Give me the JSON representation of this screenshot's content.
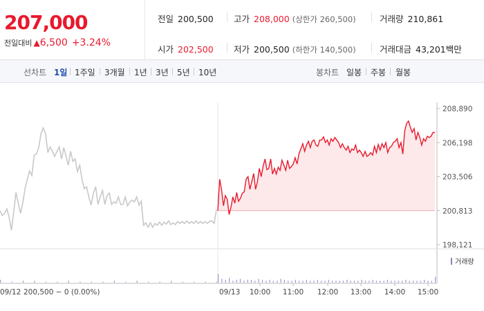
{
  "quote": {
    "current_price": "207,000",
    "change_label": "전일대비",
    "change_icon": "triangle-up-icon",
    "change_value": "6,500",
    "change_percent": "+3.24%",
    "up_color": "#e8192c"
  },
  "stats": {
    "prev_close": {
      "label": "전일",
      "value": "200,500"
    },
    "high": {
      "label": "고가",
      "value": "208,000",
      "sub": "(상한가 260,500)"
    },
    "volume": {
      "label": "거래량",
      "value": "210,861"
    },
    "open": {
      "label": "시가",
      "value": "202,500"
    },
    "low": {
      "label": "저가",
      "value": "200,500",
      "sub": "(하한가 140,500)"
    },
    "turnover": {
      "label": "거래대금",
      "value": "43,201백만"
    }
  },
  "toolbar": {
    "line_chart_label": "선차트",
    "line_periods": [
      "1일",
      "1주일",
      "3개월",
      "1년",
      "3년",
      "5년",
      "10년"
    ],
    "active_period": "1일",
    "candle_chart_label": "봉차트",
    "candle_periods": [
      "일봉",
      "주봉",
      "월봉"
    ]
  },
  "chart_data": {
    "type": "line",
    "prev_day_label": "09/12",
    "prev_day_info": "200,500 − 0 (0.00%)",
    "today_label": "09/13",
    "x_ticks": [
      "10:00",
      "11:00",
      "12:00",
      "13:00",
      "14:00",
      "15:00"
    ],
    "y_ticks": [
      "208,890",
      "206,198",
      "203,506",
      "200,813",
      "198,121"
    ],
    "ylim": [
      198121,
      208890
    ],
    "baseline": 200500,
    "volume_legend": "거래량",
    "colors": {
      "prev": "#c8c8c8",
      "today": "#e8192c",
      "fill": "#fde9ea",
      "volume": "#8e7cc3"
    },
    "prev_series": [
      200813,
      200420,
      200600,
      200950,
      200300,
      199250,
      200700,
      202250,
      201400,
      200600,
      201400,
      202550,
      203300,
      203950,
      203600,
      205200,
      205300,
      205800,
      206900,
      207350,
      206900,
      205400,
      205850,
      205500,
      205100,
      205500,
      205850,
      204900,
      205800,
      205100,
      204400,
      205500,
      204700,
      204900,
      203900,
      204400,
      203300,
      202550,
      202700,
      201900,
      201250,
      202200,
      202700,
      201300,
      201900,
      202400,
      201300,
      202000,
      202200,
      201300,
      201500,
      201400,
      201900,
      201300,
      201300,
      201900,
      201200,
      201500,
      201650,
      201500,
      201900,
      201250,
      201550,
      199650,
      199850,
      199500,
      199850,
      199500,
      199800,
      199650,
      199900,
      199650,
      199900,
      199750,
      200000,
      199700,
      199850,
      199700,
      199950,
      199800,
      199950,
      199800,
      200000,
      199800,
      199950,
      199800,
      200000,
      199800,
      199950,
      199800,
      199950,
      199800,
      199950,
      200000,
      199800,
      200900
    ],
    "today_series": [
      200813,
      203300,
      202450,
      201200,
      202000,
      201700,
      200500,
      201100,
      201900,
      201400,
      202250,
      201550,
      201800,
      202200,
      202300,
      203300,
      203500,
      202500,
      203100,
      203750,
      202500,
      203100,
      204150,
      203500,
      204300,
      204900,
      204050,
      204150,
      204900,
      203700,
      204150,
      203700,
      204250,
      204000,
      204800,
      204400,
      204000,
      204800,
      204150,
      204300,
      204500,
      205000,
      204500,
      205300,
      205700,
      206100,
      205500,
      206000,
      206300,
      205800,
      206300,
      206400,
      206000,
      205900,
      206400,
      206400,
      206650,
      206200,
      206400,
      206000,
      206500,
      206300,
      206600,
      206400,
      206200,
      205800,
      206100,
      205800,
      205600,
      205900,
      205400,
      205700,
      205600,
      206000,
      205400,
      205600,
      205400,
      205100,
      205500,
      205100,
      205200,
      205400,
      205200,
      205900,
      205400,
      206050,
      205600,
      206100,
      205800,
      206200,
      205400,
      205800,
      205900,
      206200,
      206300,
      206500,
      205800,
      206200,
      205300,
      207100,
      207700,
      207900,
      207400,
      207000,
      207300,
      206400,
      207000,
      206600,
      206000,
      206500,
      206300,
      206700,
      206600,
      206700,
      207000,
      207000
    ],
    "prev_volume": [
      3,
      1,
      2,
      2,
      1,
      1,
      2,
      1,
      1,
      1,
      2,
      1,
      2,
      1,
      1,
      2,
      1,
      1,
      1,
      1
    ],
    "today_volume": [
      9,
      4,
      3,
      5,
      2,
      3,
      4,
      2,
      3,
      3,
      2,
      4,
      3,
      2,
      3,
      2,
      2,
      4,
      3,
      2,
      2,
      3,
      2,
      2,
      3,
      2,
      2,
      3,
      2,
      2,
      3,
      2,
      2,
      2,
      2,
      3,
      2,
      2,
      2,
      3,
      2,
      2,
      3,
      2,
      2,
      2,
      3,
      2,
      2,
      2,
      2,
      3,
      2,
      2,
      2,
      2,
      3,
      2,
      2,
      6
    ]
  }
}
